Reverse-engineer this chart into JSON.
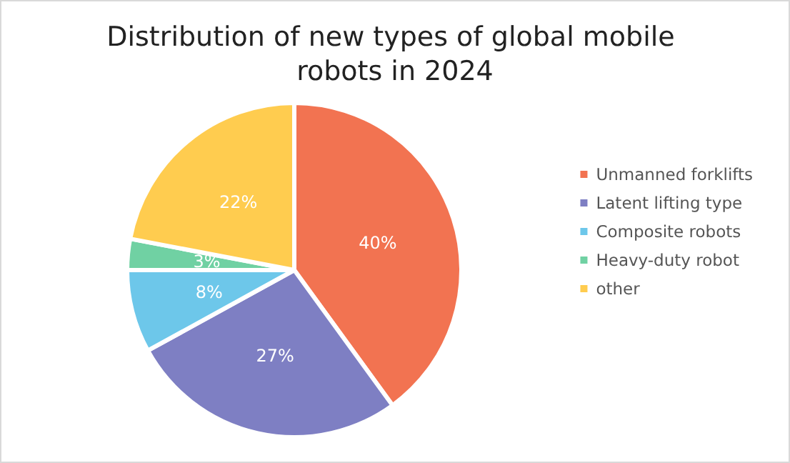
{
  "chart_data": {
    "type": "pie",
    "title": "Distribution of new types of global mobile robots in 2024",
    "categories": [
      "Unmanned forklifts",
      "Latent lifting type",
      "Composite robots",
      "Heavy-duty robot",
      "other"
    ],
    "values": [
      40,
      27,
      8,
      3,
      22
    ],
    "colors": [
      "#f27351",
      "#7e7fc3",
      "#6dc7ea",
      "#70d1a3",
      "#ffcc4f"
    ],
    "value_labels": [
      "40%",
      "27%",
      "8%",
      "3%",
      "22%"
    ],
    "legend": "right"
  }
}
